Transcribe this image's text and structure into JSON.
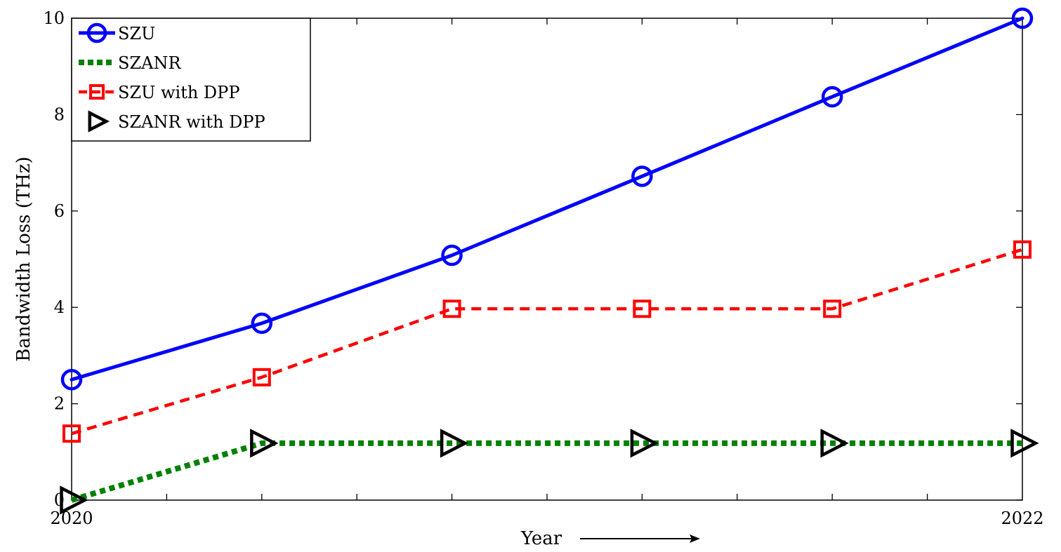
{
  "chart_data": {
    "type": "line",
    "title": "",
    "xlabel": "Year",
    "ylabel": "Bandwidth Loss (THz)",
    "x": [
      0,
      1,
      2,
      3,
      4,
      5
    ],
    "x_tick_labels": [
      {
        "x": 0,
        "label": "2020"
      },
      {
        "x": 5,
        "label": "2022"
      }
    ],
    "x_minor_ticks": [
      0.5,
      1,
      1.5,
      2,
      2.5,
      3,
      3.5,
      4,
      4.5
    ],
    "xlim": [
      0,
      5
    ],
    "ylim": [
      0,
      10
    ],
    "y_ticks": [
      0,
      2,
      4,
      6,
      8,
      10
    ],
    "grid": false,
    "legend_position": "top-left",
    "series": [
      {
        "name": "SZU",
        "values": [
          2.5,
          3.67,
          5.08,
          6.72,
          8.37,
          10.0
        ],
        "color": "#0000ff",
        "line": "solid",
        "marker": "circle"
      },
      {
        "name": "SZANR",
        "values": [
          0.0,
          1.18,
          1.18,
          1.18,
          1.18,
          1.18
        ],
        "color": "#008000",
        "line": "dotted",
        "marker": "none"
      },
      {
        "name": "SZU with DPP",
        "values": [
          1.38,
          2.55,
          3.97,
          3.97,
          3.97,
          5.2
        ],
        "color": "#ff0000",
        "line": "dashed",
        "marker": "square"
      },
      {
        "name": "SZANR with DPP",
        "values": [
          0.0,
          1.18,
          1.18,
          1.18,
          1.18,
          1.18
        ],
        "color": "#000000",
        "line": "none",
        "marker": "triangle-right"
      }
    ]
  }
}
